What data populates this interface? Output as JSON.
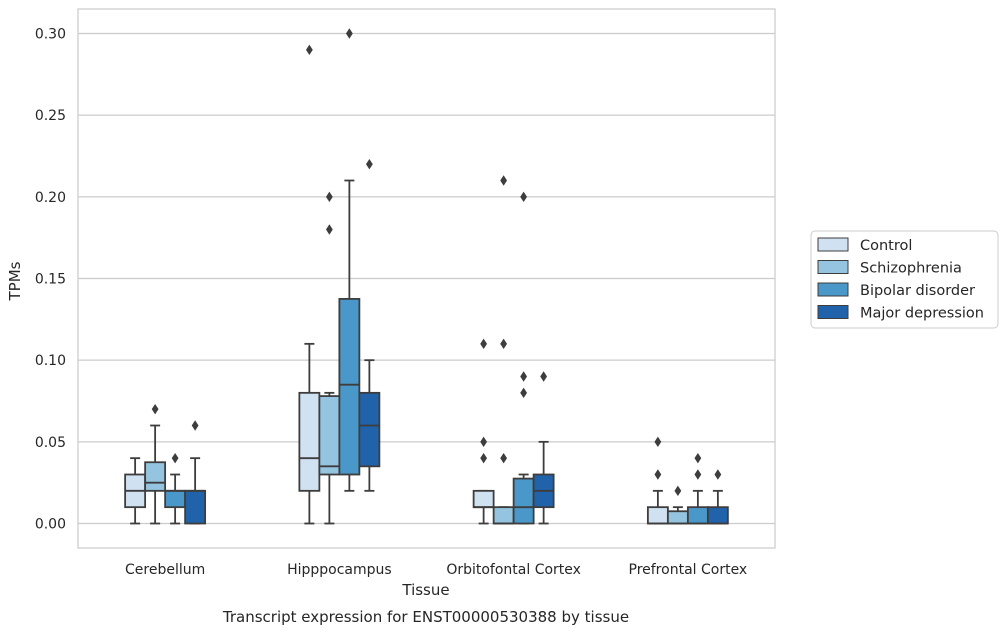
{
  "chart_data": {
    "type": "box",
    "title": "Transcript expression for ENST00000530388 by tissue",
    "xlabel": "Tissue",
    "ylabel": "TPMs",
    "ylim": [
      -0.015,
      0.315
    ],
    "yticks": [
      "0.00",
      "0.05",
      "0.10",
      "0.15",
      "0.20",
      "0.25",
      "0.30"
    ],
    "grid": true,
    "legend_position": "right",
    "categories": [
      "Cerebellum",
      "Hipppocampus",
      "Orbitofontal Cortex",
      "Prefrontal Cortex"
    ],
    "series": [
      {
        "name": "Control",
        "color": "#d0e1f2",
        "boxes": [
          {
            "whislo": 0.0,
            "q1": 0.01,
            "med": 0.02,
            "q3": 0.03,
            "whishi": 0.04,
            "fliers": []
          },
          {
            "whislo": 0.0,
            "q1": 0.02,
            "med": 0.04,
            "q3": 0.08,
            "whishi": 0.11,
            "fliers": [
              0.29
            ]
          },
          {
            "whislo": 0.0,
            "q1": 0.01,
            "med": 0.01,
            "q3": 0.02,
            "whishi": 0.02,
            "fliers": [
              0.04,
              0.05,
              0.11
            ]
          },
          {
            "whislo": 0.0,
            "q1": 0.0,
            "med": 0.0,
            "q3": 0.01,
            "whishi": 0.02,
            "fliers": [
              0.03,
              0.05
            ]
          }
        ]
      },
      {
        "name": "Schizophrenia",
        "color": "#94c4df",
        "boxes": [
          {
            "whislo": 0.0,
            "q1": 0.02,
            "med": 0.025,
            "q3": 0.0375,
            "whishi": 0.06,
            "fliers": [
              0.07
            ]
          },
          {
            "whislo": 0.0,
            "q1": 0.03,
            "med": 0.035,
            "q3": 0.078,
            "whishi": 0.08,
            "fliers": [
              0.18,
              0.2
            ]
          },
          {
            "whislo": 0.0,
            "q1": 0.0,
            "med": 0.0,
            "q3": 0.01,
            "whishi": 0.01,
            "fliers": [
              0.04,
              0.11,
              0.21
            ]
          },
          {
            "whislo": 0.0,
            "q1": 0.0,
            "med": 0.0,
            "q3": 0.0075,
            "whishi": 0.01,
            "fliers": [
              0.02
            ]
          }
        ]
      },
      {
        "name": "Bipolar disorder",
        "color": "#4a98c9",
        "boxes": [
          {
            "whislo": 0.0,
            "q1": 0.01,
            "med": 0.02,
            "q3": 0.02,
            "whishi": 0.03,
            "fliers": [
              0.04
            ]
          },
          {
            "whislo": 0.02,
            "q1": 0.03,
            "med": 0.085,
            "q3": 0.1375,
            "whishi": 0.21,
            "fliers": [
              0.3
            ]
          },
          {
            "whislo": 0.0,
            "q1": 0.0,
            "med": 0.01,
            "q3": 0.0275,
            "whishi": 0.03,
            "fliers": [
              0.08,
              0.09,
              0.2
            ]
          },
          {
            "whislo": 0.0,
            "q1": 0.0,
            "med": 0.0,
            "q3": 0.01,
            "whishi": 0.02,
            "fliers": [
              0.03,
              0.04
            ]
          }
        ]
      },
      {
        "name": "Major depression",
        "color": "#2163aa",
        "boxes": [
          {
            "whislo": 0.0,
            "q1": 0.0,
            "med": 0.02,
            "q3": 0.02,
            "whishi": 0.04,
            "fliers": [
              0.06
            ]
          },
          {
            "whislo": 0.02,
            "q1": 0.035,
            "med": 0.06,
            "q3": 0.08,
            "whishi": 0.1,
            "fliers": [
              0.22
            ]
          },
          {
            "whislo": 0.0,
            "q1": 0.01,
            "med": 0.02,
            "q3": 0.03,
            "whishi": 0.05,
            "fliers": [
              0.09
            ]
          },
          {
            "whislo": 0.0,
            "q1": 0.0,
            "med": 0.0,
            "q3": 0.01,
            "whishi": 0.02,
            "fliers": [
              0.03
            ]
          }
        ]
      }
    ]
  }
}
